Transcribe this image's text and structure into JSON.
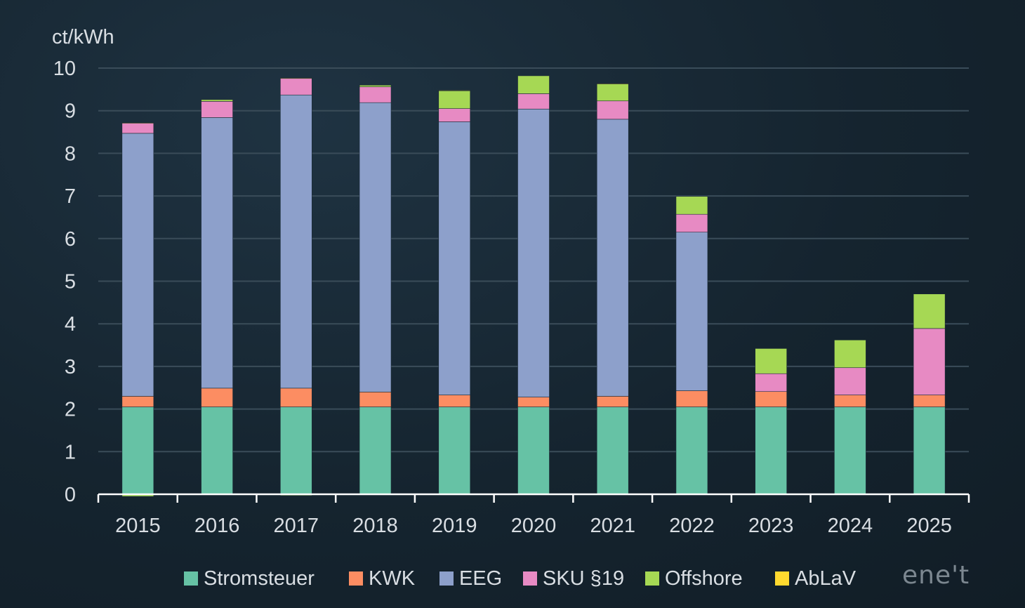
{
  "chart_data": {
    "type": "bar",
    "stacked": true,
    "ylabel": "ct/kWh",
    "ylim": [
      0,
      10
    ],
    "yticks": [
      0,
      1,
      2,
      3,
      4,
      5,
      6,
      7,
      8,
      9,
      10
    ],
    "grid": true,
    "legend_position": "bottom",
    "categories": [
      "2015",
      "2016",
      "2017",
      "2018",
      "2019",
      "2020",
      "2021",
      "2022",
      "2023",
      "2024",
      "2025"
    ],
    "series": [
      {
        "name": "Stromsteuer",
        "color": "#66c2a5",
        "values": [
          2.05,
          2.05,
          2.05,
          2.05,
          2.05,
          2.05,
          2.05,
          2.05,
          2.05,
          2.05,
          2.05
        ]
      },
      {
        "name": "KWK",
        "color": "#fc8d62",
        "values": [
          0.25,
          0.44,
          0.44,
          0.35,
          0.28,
          0.23,
          0.25,
          0.38,
          0.36,
          0.28,
          0.28
        ]
      },
      {
        "name": "EEG",
        "color": "#8da0cb",
        "values": [
          6.17,
          6.35,
          6.88,
          6.79,
          6.41,
          6.76,
          6.5,
          3.72,
          0,
          0,
          0
        ]
      },
      {
        "name": "SKU §19",
        "color": "#e78ac3",
        "values": [
          0.24,
          0.38,
          0.39,
          0.37,
          0.31,
          0.36,
          0.43,
          0.42,
          0.42,
          0.64,
          1.56
        ]
      },
      {
        "name": "Offshore",
        "color": "#a6d854",
        "values": [
          -0.05,
          0.04,
          -0.03,
          0.04,
          0.42,
          0.42,
          0.4,
          0.42,
          0.59,
          0.65,
          0.81
        ]
      },
      {
        "name": "AbLaV",
        "color": "#ffd92f",
        "values": [
          0.01,
          0,
          0.01,
          0,
          0.01,
          0,
          0.01,
          0,
          0,
          0,
          0
        ]
      }
    ]
  },
  "logo_text": "ene't"
}
